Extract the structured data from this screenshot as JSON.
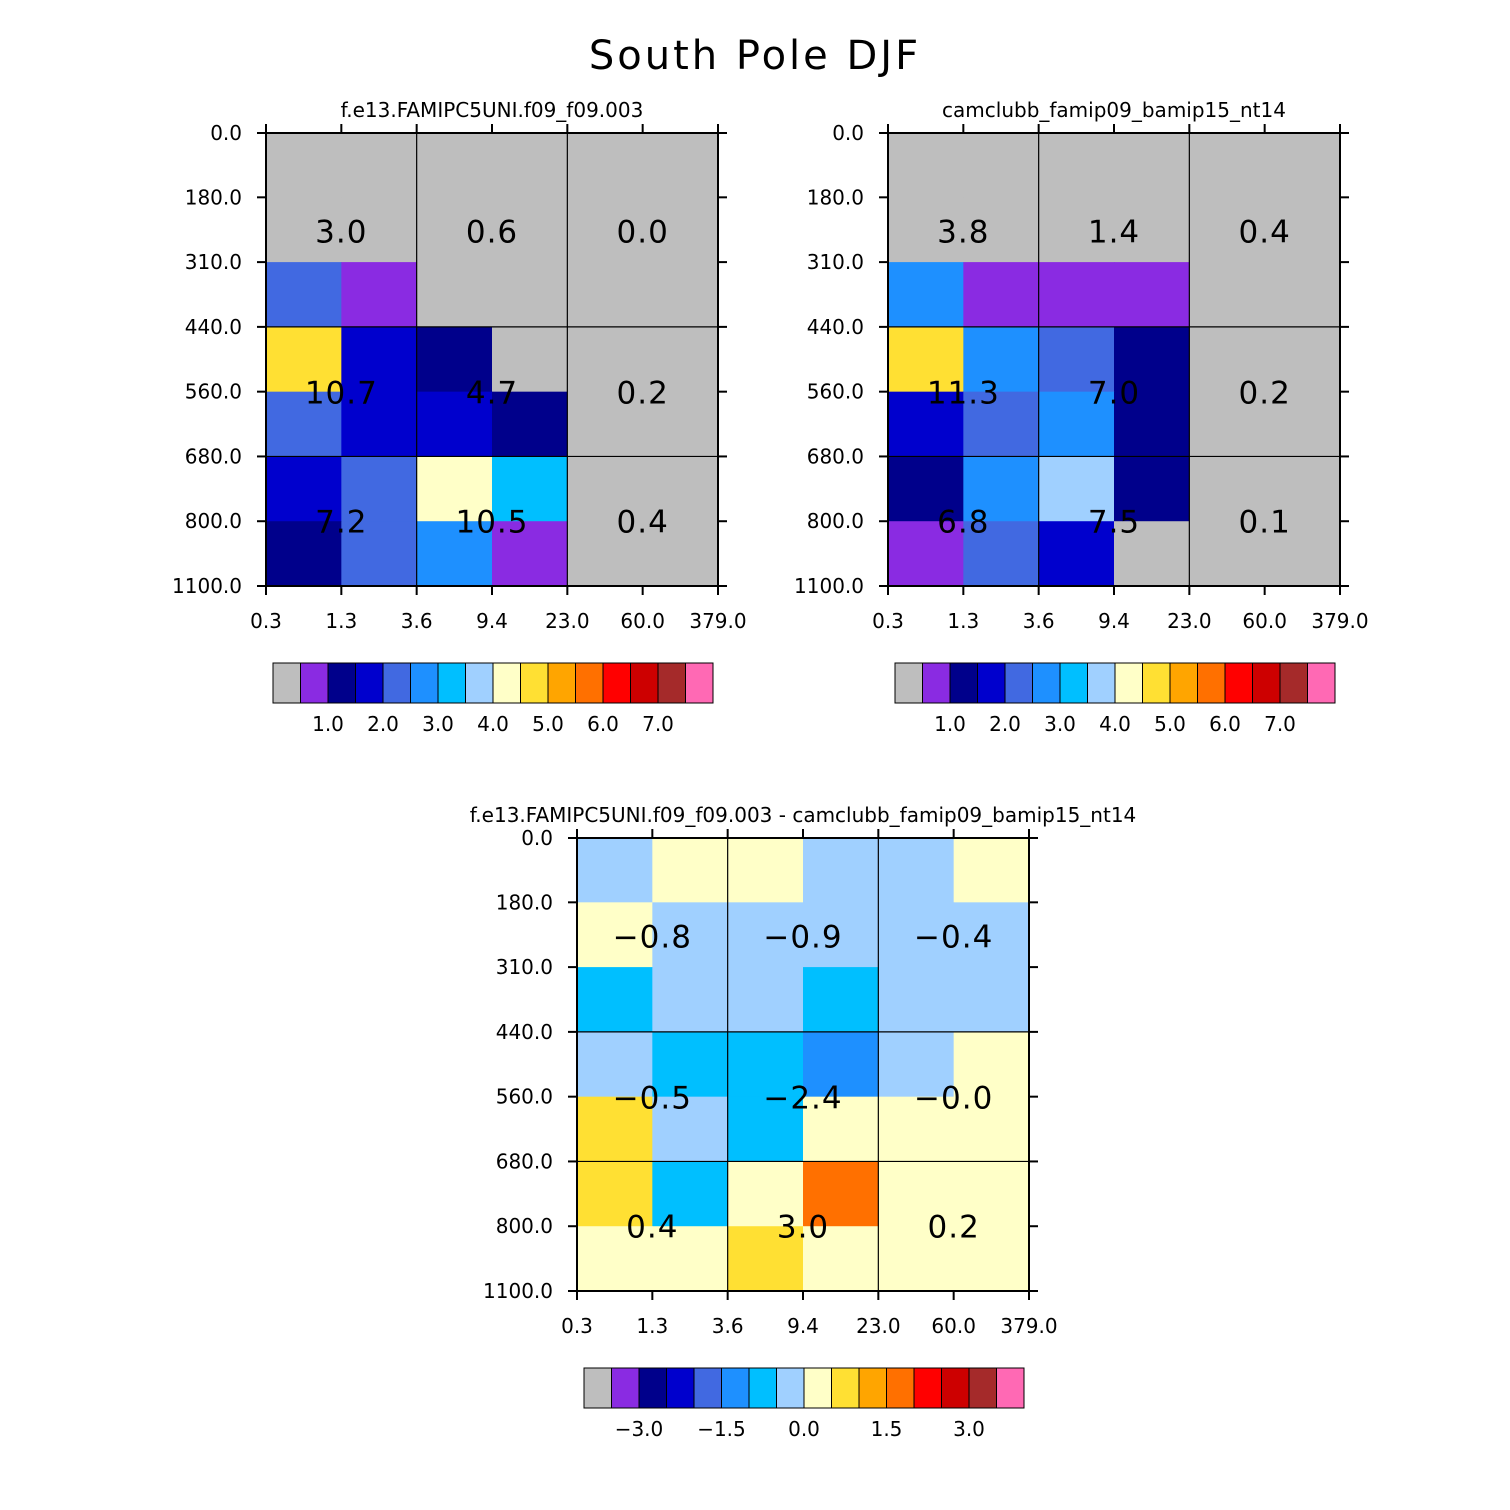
{
  "title": "South Pole DJF",
  "chart_data": [
    {
      "type": "heatmap",
      "title": "f.e13.FAMIPC5UNI.f09_f09.003",
      "x_ticks": [
        "0.3",
        "1.3",
        "3.6",
        "9.4",
        "23.0",
        "60.0",
        "379.0"
      ],
      "y_ticks": [
        "0.0",
        "180.0",
        "310.0",
        "440.0",
        "560.0",
        "680.0",
        "800.0",
        "1100.0"
      ],
      "cells": [
        [
          "#bebebe",
          "#bebebe",
          "#bebebe",
          "#bebebe",
          "#bebebe",
          "#bebebe"
        ],
        [
          "#bebebe",
          "#bebebe",
          "#bebebe",
          "#bebebe",
          "#bebebe",
          "#bebebe"
        ],
        [
          "#4169e1",
          "#8a2be2",
          "#bebebe",
          "#bebebe",
          "#bebebe",
          "#bebebe"
        ],
        [
          "#ffe033",
          "#0000cd",
          "#00008b",
          "#bebebe",
          "#bebebe",
          "#bebebe"
        ],
        [
          "#4169e1",
          "#0000cd",
          "#0000cd",
          "#00008b",
          "#bebebe",
          "#bebebe"
        ],
        [
          "#0000cd",
          "#4169e1",
          "#ffffc8",
          "#00bfff",
          "#bebebe",
          "#bebebe"
        ],
        [
          "#00008b",
          "#4169e1",
          "#1e90ff",
          "#8a2be2",
          "#bebebe",
          "#bebebe"
        ]
      ],
      "labels": [
        [
          "3.0",
          "0.6",
          "0.0"
        ],
        [
          "10.7",
          "4.7",
          "0.2"
        ],
        [
          "7.2",
          "10.5",
          "0.4"
        ]
      ],
      "colorbar": {
        "colors": [
          "#bebebe",
          "#8a2be2",
          "#00008b",
          "#0000cd",
          "#4169e1",
          "#1e90ff",
          "#00bfff",
          "#a0d0ff",
          "#ffffc8",
          "#ffe033",
          "#ffa500",
          "#ff7000",
          "#ff0000",
          "#cd0000",
          "#a52a2a",
          "#ff69b4"
        ],
        "labels": [
          "1.0",
          "2.0",
          "3.0",
          "4.0",
          "5.0",
          "6.0",
          "7.0"
        ]
      }
    },
    {
      "type": "heatmap",
      "title": "camclubb_famip09_bamip15_nt14",
      "x_ticks": [
        "0.3",
        "1.3",
        "3.6",
        "9.4",
        "23.0",
        "60.0",
        "379.0"
      ],
      "y_ticks": [
        "0.0",
        "180.0",
        "310.0",
        "440.0",
        "560.0",
        "680.0",
        "800.0",
        "1100.0"
      ],
      "cells": [
        [
          "#bebebe",
          "#bebebe",
          "#bebebe",
          "#bebebe",
          "#bebebe",
          "#bebebe"
        ],
        [
          "#bebebe",
          "#bebebe",
          "#bebebe",
          "#bebebe",
          "#bebebe",
          "#bebebe"
        ],
        [
          "#1e90ff",
          "#8a2be2",
          "#8a2be2",
          "#8a2be2",
          "#bebebe",
          "#bebebe"
        ],
        [
          "#ffe033",
          "#1e90ff",
          "#4169e1",
          "#00008b",
          "#bebebe",
          "#bebebe"
        ],
        [
          "#0000cd",
          "#4169e1",
          "#1e90ff",
          "#00008b",
          "#bebebe",
          "#bebebe"
        ],
        [
          "#00008b",
          "#1e90ff",
          "#a0d0ff",
          "#00008b",
          "#bebebe",
          "#bebebe"
        ],
        [
          "#8a2be2",
          "#4169e1",
          "#0000cd",
          "#bebebe",
          "#bebebe",
          "#bebebe"
        ]
      ],
      "labels": [
        [
          "3.8",
          "1.4",
          "0.4"
        ],
        [
          "11.3",
          "7.0",
          "0.2"
        ],
        [
          "6.8",
          "7.5",
          "0.1"
        ]
      ],
      "colorbar": {
        "colors": [
          "#bebebe",
          "#8a2be2",
          "#00008b",
          "#0000cd",
          "#4169e1",
          "#1e90ff",
          "#00bfff",
          "#a0d0ff",
          "#ffffc8",
          "#ffe033",
          "#ffa500",
          "#ff7000",
          "#ff0000",
          "#cd0000",
          "#a52a2a",
          "#ff69b4"
        ],
        "labels": [
          "1.0",
          "2.0",
          "3.0",
          "4.0",
          "5.0",
          "6.0",
          "7.0"
        ]
      }
    },
    {
      "type": "heatmap",
      "title": "f.e13.FAMIPC5UNI.f09_f09.003 - camclubb_famip09_bamip15_nt14",
      "x_ticks": [
        "0.3",
        "1.3",
        "3.6",
        "9.4",
        "23.0",
        "60.0",
        "379.0"
      ],
      "y_ticks": [
        "0.0",
        "180.0",
        "310.0",
        "440.0",
        "560.0",
        "680.0",
        "800.0",
        "1100.0"
      ],
      "cells": [
        [
          "#a0d0ff",
          "#ffffc8",
          "#ffffc8",
          "#a0d0ff",
          "#a0d0ff",
          "#ffffc8"
        ],
        [
          "#ffffc8",
          "#a0d0ff",
          "#a0d0ff",
          "#a0d0ff",
          "#a0d0ff",
          "#a0d0ff"
        ],
        [
          "#00bfff",
          "#a0d0ff",
          "#a0d0ff",
          "#00bfff",
          "#a0d0ff",
          "#a0d0ff"
        ],
        [
          "#a0d0ff",
          "#00bfff",
          "#00bfff",
          "#1e90ff",
          "#a0d0ff",
          "#ffffc8"
        ],
        [
          "#ffe033",
          "#a0d0ff",
          "#00bfff",
          "#ffffc8",
          "#ffffc8",
          "#ffffc8"
        ],
        [
          "#ffe033",
          "#00bfff",
          "#ffffc8",
          "#ff7000",
          "#ffffc8",
          "#ffffc8"
        ],
        [
          "#ffffc8",
          "#ffffc8",
          "#ffe033",
          "#ffffc8",
          "#ffffc8",
          "#ffffc8"
        ]
      ],
      "labels": [
        [
          "-0.8",
          "-0.9",
          "-0.4"
        ],
        [
          "-0.5",
          "-2.4",
          "-0.0"
        ],
        [
          "0.4",
          "3.0",
          "0.2"
        ]
      ],
      "colorbar": {
        "colors": [
          "#bebebe",
          "#8a2be2",
          "#00008b",
          "#0000cd",
          "#4169e1",
          "#1e90ff",
          "#00bfff",
          "#a0d0ff",
          "#ffffc8",
          "#ffe033",
          "#ffa500",
          "#ff7000",
          "#ff0000",
          "#cd0000",
          "#a52a2a",
          "#ff69b4"
        ],
        "labels": [
          "-3.0",
          "-1.5",
          "0.0",
          "1.5",
          "3.0"
        ]
      }
    }
  ]
}
